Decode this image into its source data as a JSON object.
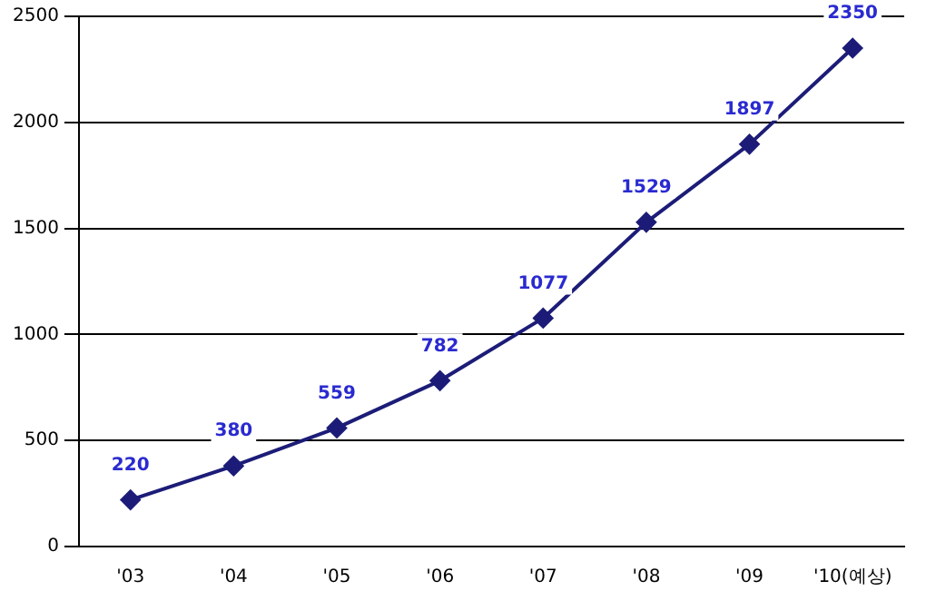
{
  "chart_data": {
    "type": "line",
    "categories": [
      "'03",
      "'04",
      "'05",
      "'06",
      "'07",
      "'08",
      "'09",
      "'10(예상)"
    ],
    "series": [
      {
        "color": "#1c1c78",
        "values": [
          220,
          380,
          559,
          782,
          1077,
          1529,
          1897,
          2350
        ]
      }
    ],
    "ylim": [
      0,
      2500
    ],
    "yticks": [
      0,
      500,
      1000,
      1500,
      2000,
      2500
    ],
    "grid": "y",
    "marker": "diamond",
    "line_style": "solid",
    "data_labels": true,
    "legend": false
  }
}
